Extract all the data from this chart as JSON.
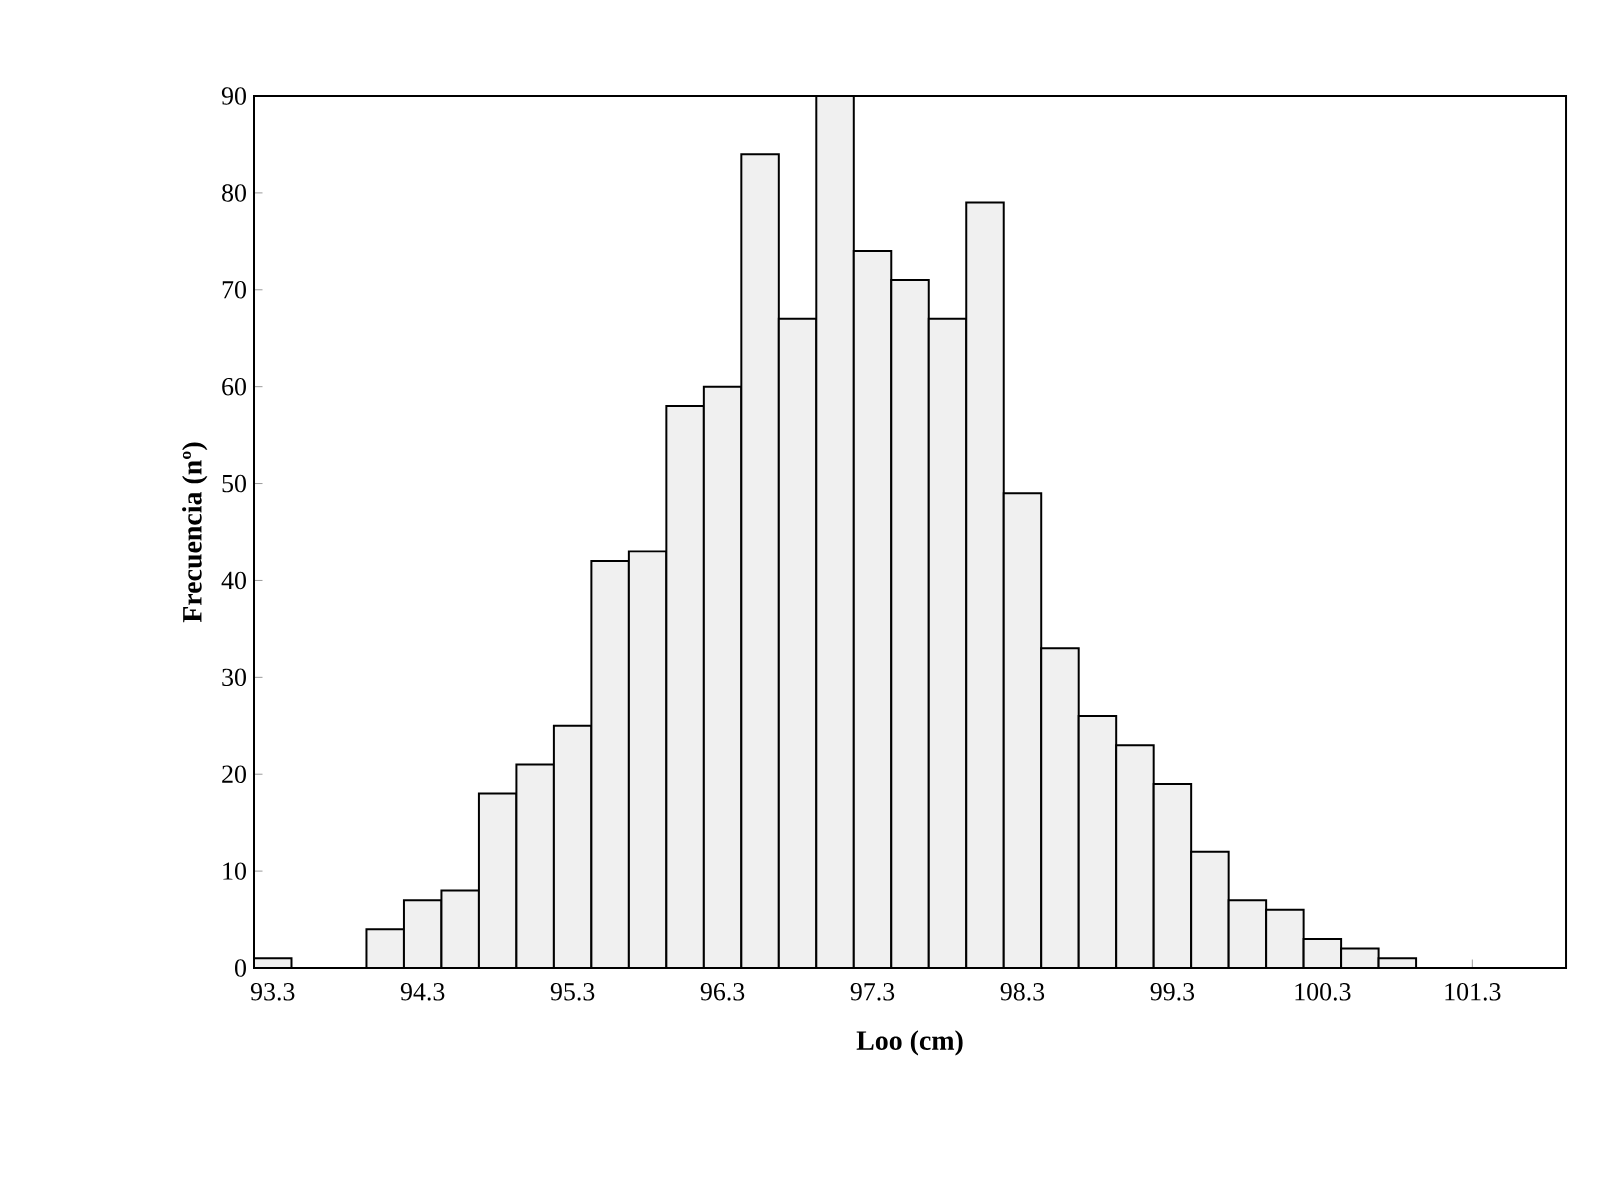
{
  "chart_data": {
    "type": "histogram",
    "xlabel": "Loo (cm)",
    "ylabel": "Frecuencia (nº)",
    "bins": [
      93.175,
      93.425,
      93.675,
      93.925,
      94.175,
      94.425,
      94.675,
      94.925,
      95.175,
      95.425,
      95.675,
      95.925,
      96.175,
      96.425,
      96.675,
      96.925,
      97.175,
      97.425,
      97.675,
      97.925,
      98.175,
      98.425,
      98.675,
      98.925,
      99.175,
      99.425,
      99.675,
      99.925,
      100.175,
      100.425,
      100.675,
      100.925,
      101.175,
      101.425,
      101.675,
      101.925
    ],
    "values": [
      1,
      0,
      0,
      4,
      7,
      8,
      18,
      21,
      25,
      42,
      43,
      58,
      60,
      84,
      67,
      90,
      74,
      71,
      67,
      79,
      49,
      33,
      26,
      23,
      19,
      12,
      7,
      6,
      3,
      2,
      1,
      0,
      0,
      0,
      0
    ],
    "color": "#f0f0f0",
    "xlim": [
      93.175,
      101.925
    ],
    "xticks": [
      93.3,
      94.3,
      95.3,
      96.3,
      97.3,
      98.3,
      99.3,
      100.3,
      101.3
    ],
    "ylim": [
      0,
      90
    ],
    "yticks": [
      0,
      10,
      20,
      30,
      40,
      50,
      60,
      70,
      80,
      90
    ],
    "grid": false
  }
}
